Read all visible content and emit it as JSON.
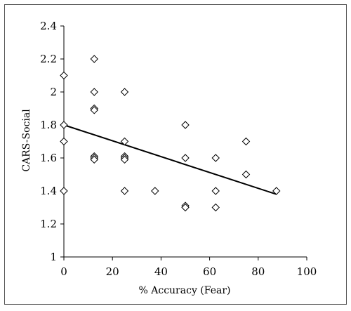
{
  "chart_data": {
    "type": "scatter",
    "title": "",
    "xlabel": "% Accuracy (Fear)",
    "ylabel": "CARS-Social",
    "xlim": [
      0,
      100
    ],
    "ylim": [
      1,
      2.4
    ],
    "x_ticks": [
      0,
      20,
      40,
      60,
      80,
      100
    ],
    "y_ticks": [
      1,
      1.2,
      1.4,
      1.6,
      1.8,
      2,
      2.2,
      2.4
    ],
    "grid": false,
    "legend": "none",
    "marker": "diamond-open",
    "marker_color": "#000000",
    "series": [
      {
        "x": [
          0,
          0,
          0,
          0,
          12.5,
          12.5,
          12.5,
          12.5,
          12.5,
          12.5,
          12.5,
          25,
          25,
          25,
          25,
          25,
          25,
          37.5,
          50,
          50,
          50,
          50,
          62.5,
          62.5,
          62.5,
          75,
          75,
          87.5
        ],
        "y": [
          2.1,
          1.8,
          1.7,
          1.4,
          2.2,
          2.0,
          1.9,
          1.89,
          1.61,
          1.6,
          1.59,
          2.0,
          1.7,
          1.61,
          1.6,
          1.59,
          1.4,
          1.4,
          1.8,
          1.6,
          1.31,
          1.3,
          1.6,
          1.4,
          1.3,
          1.7,
          1.5,
          1.4
        ]
      }
    ],
    "trendline": {
      "x": [
        0,
        87.5
      ],
      "y": [
        1.8,
        1.38
      ]
    }
  }
}
